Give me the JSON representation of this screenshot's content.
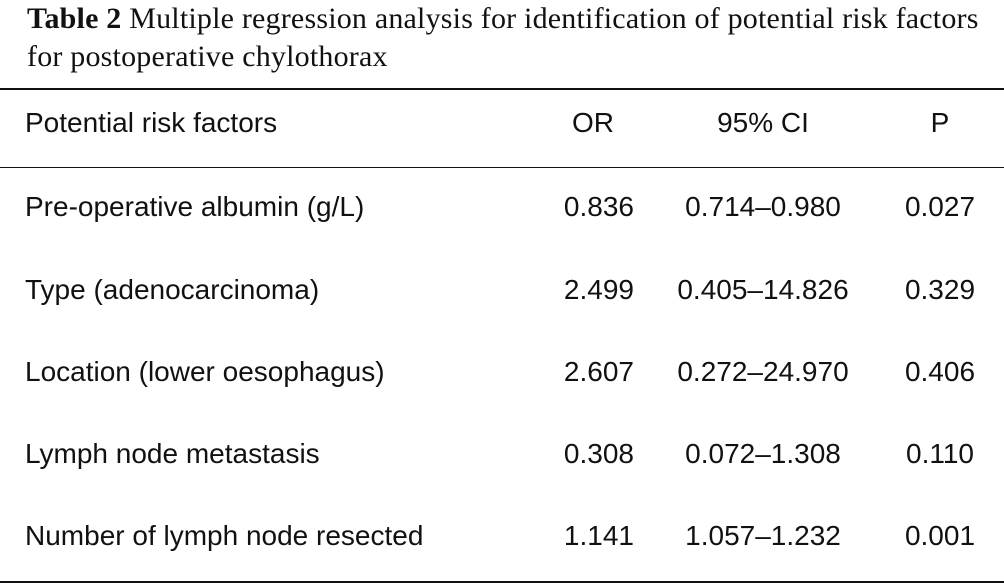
{
  "caption": {
    "label": "Table 2",
    "text": "Multiple regression analysis for identification of potential risk factors for postoperative chylothorax"
  },
  "table": {
    "headers": {
      "factor": "Potential risk factors",
      "or": "OR",
      "ci": "95% CI",
      "p": "P"
    },
    "rows": [
      {
        "factor": "Pre-operative albumin (g/L)",
        "or": "0.836",
        "ci": "0.714–0.980",
        "p": "0.027"
      },
      {
        "factor": "Type (adenocarcinoma)",
        "or": "2.499",
        "ci": "0.405–14.826",
        "p": "0.329"
      },
      {
        "factor": "Location (lower oesophagus)",
        "or": "2.607",
        "ci": "0.272–24.970",
        "p": "0.406"
      },
      {
        "factor": "Lymph node metastasis",
        "or": "0.308",
        "ci": "0.072–1.308",
        "p": "0.110"
      },
      {
        "factor": "Number of lymph node resected",
        "or": "1.141",
        "ci": "1.057–1.232",
        "p": "0.001"
      }
    ]
  }
}
